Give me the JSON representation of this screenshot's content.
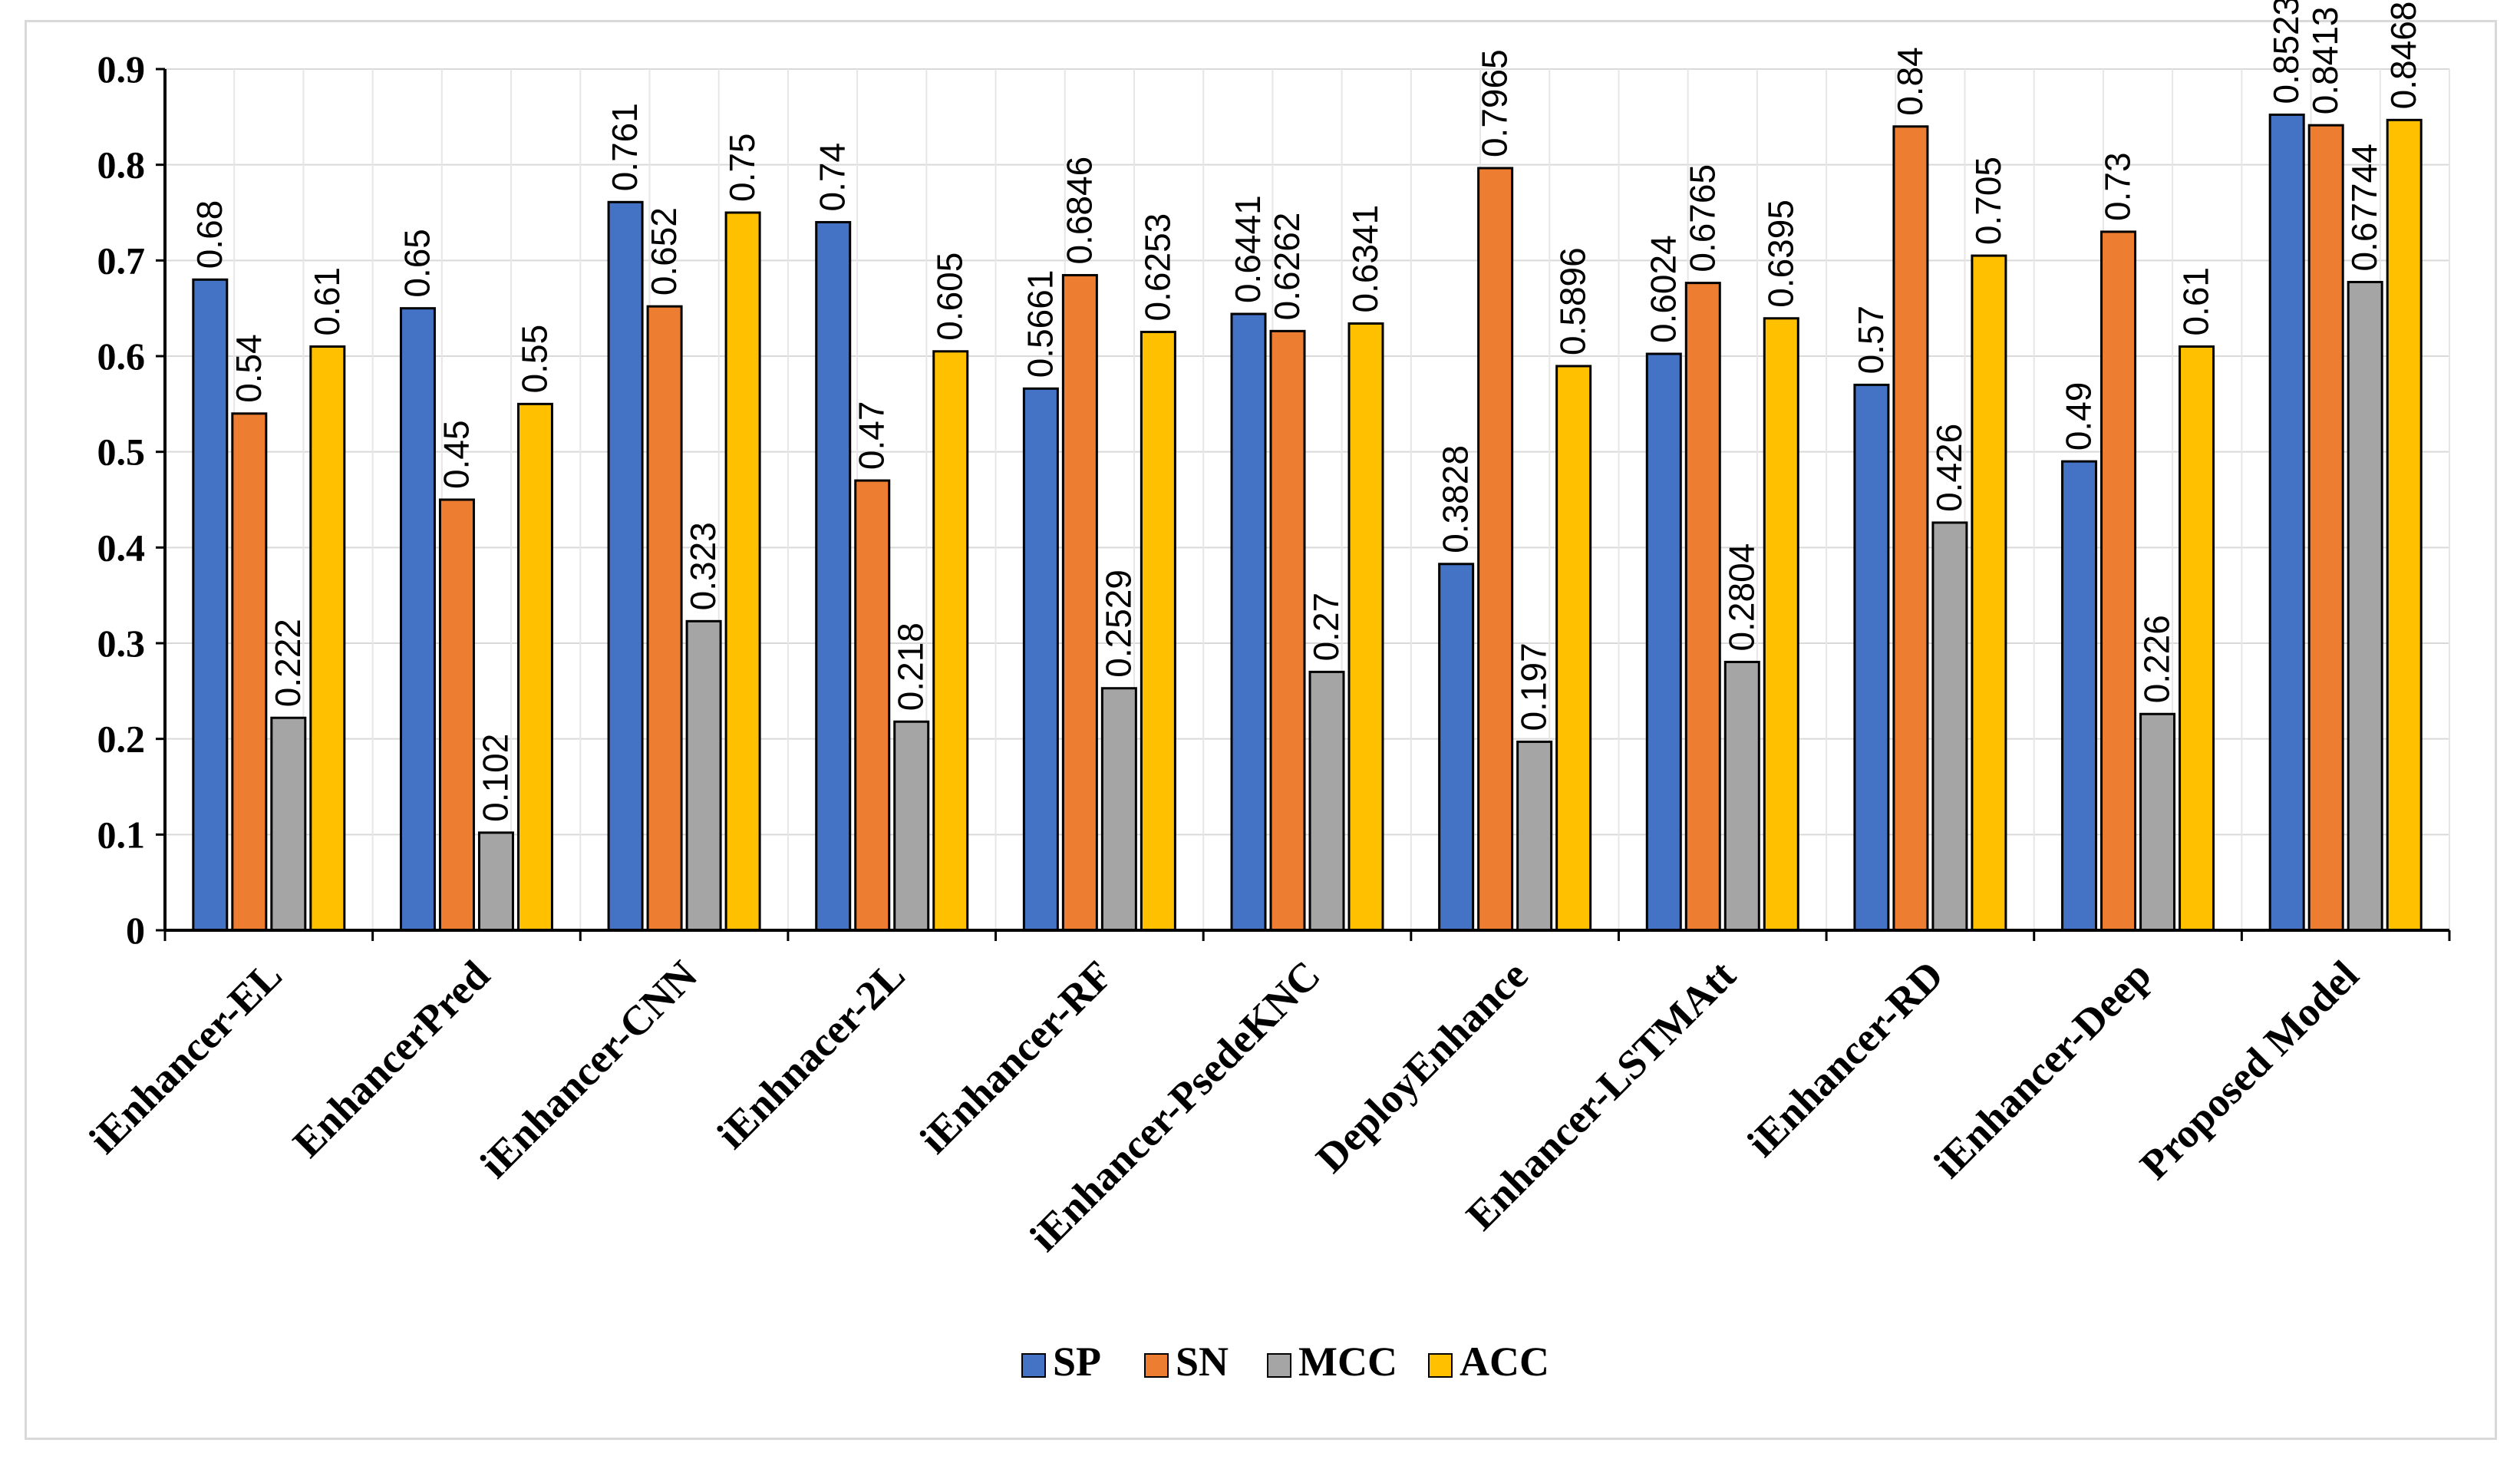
{
  "chart_data": {
    "type": "bar",
    "title": "",
    "xlabel": "",
    "ylabel": "",
    "ylim": [
      0,
      0.9
    ],
    "yticks": [
      "0",
      "0.1",
      "0.2",
      "0.3",
      "0.4",
      "0.5",
      "0.6",
      "0.7",
      "0.8",
      "0.9"
    ],
    "grid": true,
    "legend_position": "bottom",
    "categories": [
      "iEnhancer-EL",
      "EnhancerPred",
      "iEnhancer-CNN",
      "iEnhnacer-2L",
      "iEnhancer-RF",
      "iEnhancer-PsedeKNC",
      "DeployEnhance",
      "Enhancer-LSTMAtt",
      "iEnhancer-RD",
      "iEnhancer-Deep",
      "Proposed Model"
    ],
    "series": [
      {
        "name": "SP",
        "color": "#4472C4",
        "values": [
          0.68,
          0.65,
          0.761,
          0.74,
          0.5661,
          0.6441,
          0.3828,
          0.6024,
          0.57,
          0.49,
          0.8523
        ],
        "labels": [
          "0.68",
          "0.65",
          "0.761",
          "0.74",
          "0.5661",
          "0.6441",
          "0.3828",
          "0.6024",
          "0.57",
          "0.49",
          "0.8523"
        ]
      },
      {
        "name": "SN",
        "color": "#ED7D31",
        "values": [
          0.54,
          0.45,
          0.652,
          0.47,
          0.6846,
          0.6262,
          0.7965,
          0.6765,
          0.84,
          0.73,
          0.8413
        ],
        "labels": [
          "0.54",
          "0.45",
          "0.652",
          "0.47",
          "0.6846",
          "0.6262",
          "0.7965",
          "0.6765",
          "0.84",
          "0.73",
          "0.8413"
        ]
      },
      {
        "name": "MCC",
        "color": "#A5A5A5",
        "values": [
          0.222,
          0.102,
          0.323,
          0.218,
          0.2529,
          0.27,
          0.197,
          0.2804,
          0.426,
          0.226,
          0.67744
        ],
        "labels": [
          "0.222",
          "0.102",
          "0.323",
          "0.218",
          "0.2529",
          "0.27",
          "0.197",
          "0.2804",
          "0.426",
          "0.226",
          "0.67744"
        ]
      },
      {
        "name": "ACC",
        "color": "#FFC000",
        "values": [
          0.61,
          0.55,
          0.75,
          0.605,
          0.6253,
          0.6341,
          0.5896,
          0.6395,
          0.705,
          0.61,
          0.8468
        ],
        "labels": [
          "0.61",
          "0.55",
          "0.75",
          "0.605",
          "0.6253",
          "0.6341",
          "0.5896",
          "0.6395",
          "0.705",
          "0.61",
          "0.8468"
        ]
      }
    ]
  }
}
